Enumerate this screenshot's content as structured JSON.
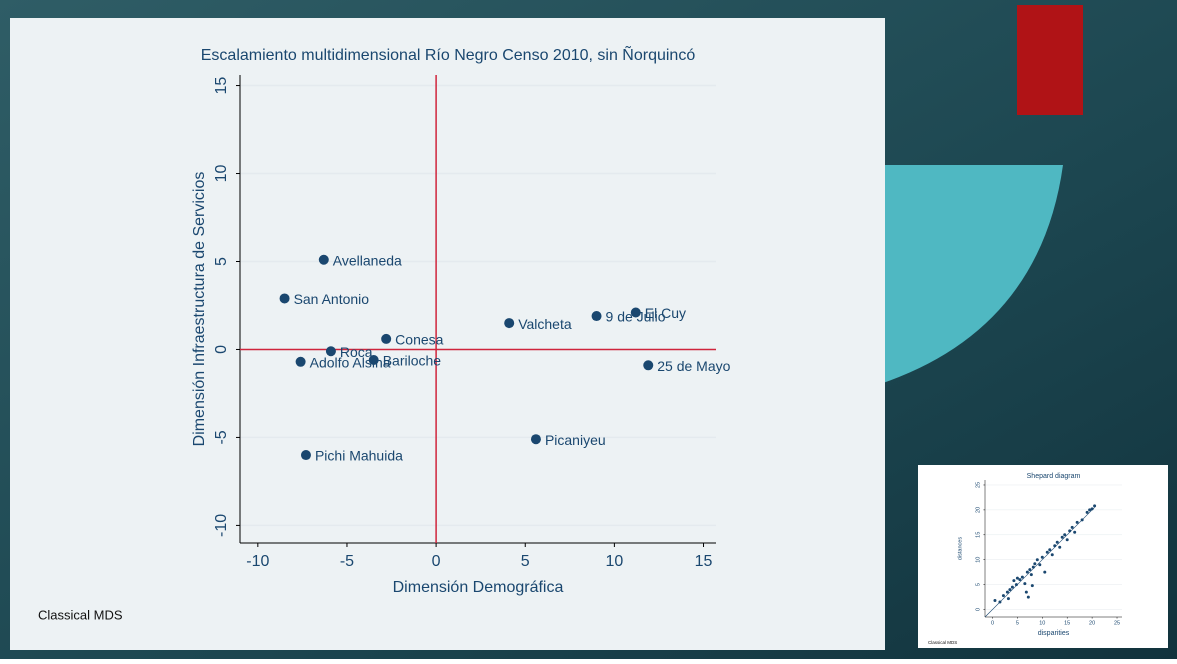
{
  "chart_data": [
    {
      "type": "scatter",
      "title": "Escalamiento multidimensional Río Negro Censo 2010, sin Ñorquincó",
      "x_label": "Dimensión Demográfica",
      "y_label": "Dimensión Infraestructura de Servicios",
      "note": "Classical MDS",
      "labels": [
        "Avellaneda",
        "San Antonio",
        "Conesa",
        "Roca",
        "Bariloche",
        "Adolfo Alsina",
        "Pichi Mahuida",
        "Valcheta",
        "9 de Julio",
        "El Cuy",
        "25 de Mayo",
        "Picaniyeu"
      ],
      "x": [
        -6.3,
        -8.5,
        -2.8,
        -5.9,
        -3.5,
        -7.6,
        -7.3,
        4.1,
        9.0,
        11.2,
        11.9,
        5.6
      ],
      "y": [
        5.1,
        2.9,
        0.6,
        -0.1,
        -0.6,
        -0.7,
        -6.0,
        1.5,
        1.9,
        2.1,
        -0.9,
        -5.1
      ],
      "color": "#1a476f",
      "xlim": [
        -11,
        15.7
      ],
      "ylim": [
        -11,
        15.6
      ],
      "xticks": [
        -10,
        -5,
        0,
        5,
        10,
        15
      ],
      "yticks": [
        -10,
        -5,
        0,
        5,
        10,
        15
      ],
      "grid": true,
      "xline": 0,
      "yline": 0,
      "refline_color": "#d0253c"
    },
    {
      "type": "scatter",
      "title": "Shepard diagram",
      "x_label": "disparities",
      "y_label": "distances",
      "note": "Classical MDS",
      "x": [
        0.5,
        1.5,
        2.2,
        3,
        3.2,
        3.5,
        4,
        4.3,
        4.8,
        5,
        5.5,
        6,
        6.5,
        6.8,
        7,
        7.2,
        7.5,
        7.8,
        8,
        8.2,
        8.5,
        9,
        9.5,
        10,
        10.5,
        11,
        11.5,
        12,
        12.5,
        13,
        13.5,
        14,
        14.5,
        15,
        15.5,
        16,
        16.5,
        17,
        18,
        19,
        19.5,
        20,
        20.5
      ],
      "y": [
        1.8,
        1.5,
        2.8,
        3.5,
        2.2,
        4,
        4.5,
        5.8,
        5,
        6.3,
        6,
        6.5,
        5.2,
        3.5,
        7.5,
        2.5,
        8,
        7,
        4.8,
        8.5,
        9.2,
        10,
        9,
        10.5,
        7.5,
        11.5,
        12,
        11,
        12.8,
        13.5,
        12.5,
        14.5,
        15,
        14,
        15.8,
        16.5,
        15.5,
        17.5,
        18,
        19.5,
        20,
        20.2,
        20.8
      ],
      "color": "#1a476f",
      "xlim": [
        -1.5,
        26
      ],
      "ylim": [
        -1.5,
        26
      ],
      "xticks": [
        0,
        5,
        10,
        15,
        20,
        25
      ],
      "yticks": [
        0,
        5,
        10,
        15,
        20,
        25
      ],
      "grid": true,
      "diagonal": true
    }
  ]
}
